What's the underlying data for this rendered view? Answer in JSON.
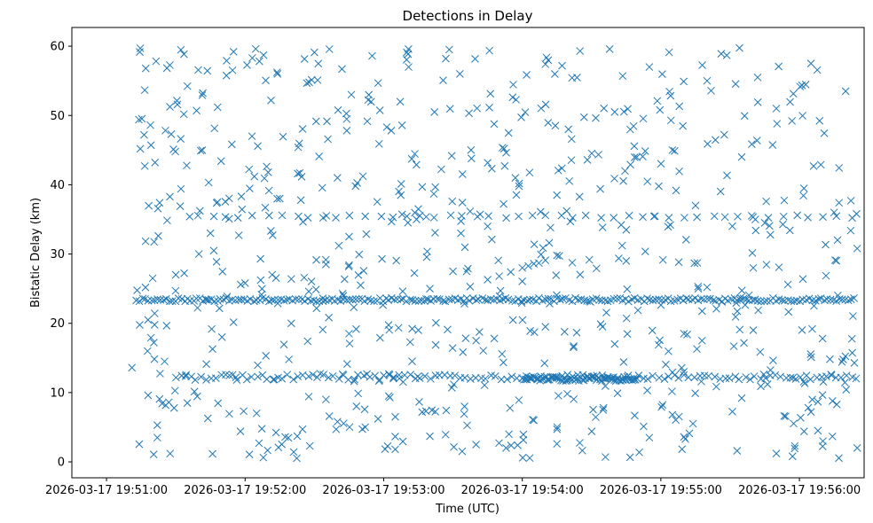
{
  "chart_data": {
    "type": "scatter",
    "title": "Detections in Delay",
    "xlabel": "Time (UTC)",
    "ylabel": "Bistatic Delay (km)",
    "marker": "x",
    "color": "#1f77b4",
    "x_ticks": [
      "2026-03-17 19:51:00",
      "2026-03-17 19:52:00",
      "2026-03-17 19:53:00",
      "2026-03-17 19:54:00",
      "2026-03-17 19:55:00",
      "2026-03-17 19:56:00"
    ],
    "y_ticks": [
      "0",
      "10",
      "20",
      "30",
      "40",
      "50",
      "60"
    ],
    "xlim": [
      "2026-03-17 19:50:45",
      "2026-03-17 19:56:28"
    ],
    "ylim": [
      -2.3,
      62.7
    ],
    "grid": false,
    "legend": "none",
    "series": [
      {
        "points": [
          {
            "t": "19:51:14",
            "y": 49.4
          },
          {
            "t": "19:51:17",
            "y": 56.8
          },
          {
            "t": "19:51:19",
            "y": 48.6
          },
          {
            "t": "19:51:21",
            "y": 43.2
          },
          {
            "t": "19:51:23",
            "y": 37.4
          },
          {
            "t": "19:51:28",
            "y": 47.3
          },
          {
            "t": "19:51:36",
            "y": 35.4
          },
          {
            "t": "19:51:48",
            "y": 37.5
          },
          {
            "t": "19:51:52",
            "y": 57.9
          },
          {
            "t": "19:51:55",
            "y": 59.2
          },
          {
            "t": "19:52:03",
            "y": 47.0
          },
          {
            "t": "19:52:10",
            "y": 41.8
          },
          {
            "t": "19:52:14",
            "y": 56.0
          },
          {
            "t": "19:52:23",
            "y": 45.4
          },
          {
            "t": "19:52:30",
            "y": 59.1
          },
          {
            "t": "19:52:40",
            "y": 41.0
          },
          {
            "t": "19:52:46",
            "y": 53.0
          },
          {
            "t": "19:52:55",
            "y": 58.6
          },
          {
            "t": "19:52:58",
            "y": 45.9
          },
          {
            "t": "19:53:10",
            "y": 59.1
          },
          {
            "t": "19:53:22",
            "y": 50.5
          },
          {
            "t": "19:53:33",
            "y": 56.0
          },
          {
            "t": "19:53:38",
            "y": 43.8
          },
          {
            "t": "19:53:57",
            "y": 41.0
          },
          {
            "t": "19:54:10",
            "y": 57.4
          },
          {
            "t": "19:54:20",
            "y": 48.0
          },
          {
            "t": "19:54:25",
            "y": 59.3
          },
          {
            "t": "19:54:40",
            "y": 50.5
          },
          {
            "t": "19:54:55",
            "y": 57.0
          },
          {
            "t": "19:55:05",
            "y": 45.0
          },
          {
            "t": "19:55:20",
            "y": 55.0
          },
          {
            "t": "19:55:35",
            "y": 44.0
          },
          {
            "t": "19:55:50",
            "y": 51.0
          },
          {
            "t": "19:56:05",
            "y": 57.5
          },
          {
            "t": "19:56:20",
            "y": 53.5
          },
          {
            "t": "19:56:25",
            "y": 30.8
          },
          {
            "t": "19:51:40",
            "y": 30.0
          },
          {
            "t": "19:52:35",
            "y": 28.5
          },
          {
            "t": "19:53:30",
            "y": 27.5
          },
          {
            "t": "19:54:45",
            "y": 29.0
          },
          {
            "t": "19:55:40",
            "y": 28.0
          },
          {
            "t": "19:53:45",
            "y": 26.3
          },
          {
            "t": "19:53:50",
            "y": 26.8
          },
          {
            "t": "19:53:55",
            "y": 27.4
          },
          {
            "t": "19:54:00",
            "y": 28.0
          },
          {
            "t": "19:54:05",
            "y": 28.6
          },
          {
            "t": "19:54:10",
            "y": 29.1
          },
          {
            "t": "19:54:15",
            "y": 29.8
          },
          {
            "t": "19:51:20",
            "y": 26.5
          },
          {
            "t": "19:51:30",
            "y": 27.0
          },
          {
            "t": "19:52:00",
            "y": 25.8
          },
          {
            "t": "19:52:20",
            "y": 26.4
          },
          {
            "t": "19:52:50",
            "y": 25.5
          },
          {
            "t": "19:53:20",
            "y": 25.0
          },
          {
            "t": "19:55:20",
            "y": 25.2
          },
          {
            "t": "19:55:55",
            "y": 25.6
          },
          {
            "t": "19:51:11",
            "y": 13.6
          },
          {
            "t": "19:51:18",
            "y": 9.6
          },
          {
            "t": "19:51:22",
            "y": 5.3
          },
          {
            "t": "19:51:22",
            "y": 3.5
          },
          {
            "t": "19:51:27",
            "y": 8.6
          },
          {
            "t": "19:51:58",
            "y": 4.4
          },
          {
            "t": "19:52:06",
            "y": 2.7
          },
          {
            "t": "19:52:28",
            "y": 2.3
          },
          {
            "t": "19:52:40",
            "y": 5.8
          },
          {
            "t": "19:52:52",
            "y": 5.0
          },
          {
            "t": "19:53:05",
            "y": 1.8
          },
          {
            "t": "19:53:20",
            "y": 3.7
          },
          {
            "t": "19:53:40",
            "y": 2.5
          },
          {
            "t": "19:53:58",
            "y": 2.4
          },
          {
            "t": "19:54:15",
            "y": 2.6
          },
          {
            "t": "19:54:36",
            "y": 0.7
          },
          {
            "t": "19:54:55",
            "y": 3.5
          },
          {
            "t": "19:55:10",
            "y": 3.6
          },
          {
            "t": "19:55:33",
            "y": 1.6
          },
          {
            "t": "19:55:50",
            "y": 1.2
          },
          {
            "t": "19:55:57",
            "y": 0.8
          },
          {
            "t": "19:56:08",
            "y": 4.5
          },
          {
            "t": "19:56:25",
            "y": 2.0
          },
          {
            "t": "19:55:58",
            "y": 2.3
          },
          {
            "t": "19:51:50",
            "y": 18.0
          },
          {
            "t": "19:52:20",
            "y": 20.0
          },
          {
            "t": "19:52:45",
            "y": 18.5
          },
          {
            "t": "19:53:15",
            "y": 19.0
          },
          {
            "t": "19:53:40",
            "y": 17.5
          },
          {
            "t": "19:54:10",
            "y": 19.5
          },
          {
            "t": "19:54:40",
            "y": 17.0
          },
          {
            "t": "19:55:10",
            "y": 18.5
          },
          {
            "t": "19:55:40",
            "y": 19.0
          },
          {
            "t": "19:56:10",
            "y": 17.8
          },
          {
            "t": "19:51:35",
            "y": 8.5
          },
          {
            "t": "19:52:05",
            "y": 7.0
          },
          {
            "t": "19:52:35",
            "y": 9.0
          },
          {
            "t": "19:53:05",
            "y": 6.5
          },
          {
            "t": "19:53:35",
            "y": 8.0
          },
          {
            "t": "19:54:05",
            "y": 6.0
          },
          {
            "t": "19:54:35",
            "y": 7.5
          },
          {
            "t": "19:55:05",
            "y": 6.8
          },
          {
            "t": "19:55:35",
            "y": 9.2
          },
          {
            "t": "19:56:05",
            "y": 7.2
          },
          {
            "t": "19:51:45",
            "y": 33.0
          },
          {
            "t": "19:52:15",
            "y": 38.0
          },
          {
            "t": "19:52:45",
            "y": 32.5
          },
          {
            "t": "19:53:15",
            "y": 36.5
          },
          {
            "t": "19:53:45",
            "y": 34.0
          },
          {
            "t": "19:54:15",
            "y": 38.5
          },
          {
            "t": "19:54:45",
            "y": 33.5
          },
          {
            "t": "19:55:15",
            "y": 37.0
          },
          {
            "t": "19:55:45",
            "y": 34.5
          },
          {
            "t": "19:56:15",
            "y": 36.0
          }
        ],
        "bands": [
          {
            "y": 23.4,
            "from": "19:51:13",
            "to": "19:56:25",
            "step_s": 1.3,
            "jitter": 0.25
          },
          {
            "y": 12.2,
            "from": "19:51:30",
            "to": "19:56:25",
            "step_s": 2.2,
            "jitter": 0.4
          },
          {
            "y": 12.0,
            "from": "19:54:00",
            "to": "19:54:50",
            "step_s": 0.7,
            "jitter": 0.35
          },
          {
            "y": 35.4,
            "from": "19:51:40",
            "to": "19:56:25",
            "step_s": 6.0,
            "jitter": 0.2
          }
        ],
        "scatter_fill": {
          "count": 620,
          "y_range": [
            0.5,
            59.8
          ],
          "t_range": [
            "19:51:12",
            "19:56:25"
          ],
          "seed": 7
        }
      }
    ]
  }
}
